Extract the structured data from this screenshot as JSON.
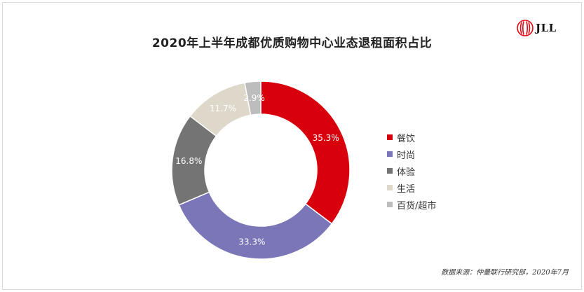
{
  "brand": {
    "name": "JLL",
    "color": "#e30613"
  },
  "source": "数据来源：仲量联行研究部，2020年7月",
  "chart_data": {
    "type": "pie",
    "variant": "donut",
    "title": "2020年上半年成都优质购物中心业态退租面积占比",
    "legend_position": "right",
    "categories": [
      "餐饮",
      "时尚",
      "体验",
      "生活",
      "百货/超市"
    ],
    "values": [
      35.3,
      33.3,
      16.8,
      11.7,
      2.9
    ],
    "labels": [
      "35.3%",
      "33.3%",
      "16.8%",
      "11.7%",
      "2.9%"
    ],
    "colors": [
      "#d9000d",
      "#7b76b8",
      "#747474",
      "#ddd8c9",
      "#bdbdbd"
    ],
    "label_colors": [
      "#ffffff",
      "#ffffff",
      "#ffffff",
      "#ffffff",
      "#ffffff"
    ]
  }
}
